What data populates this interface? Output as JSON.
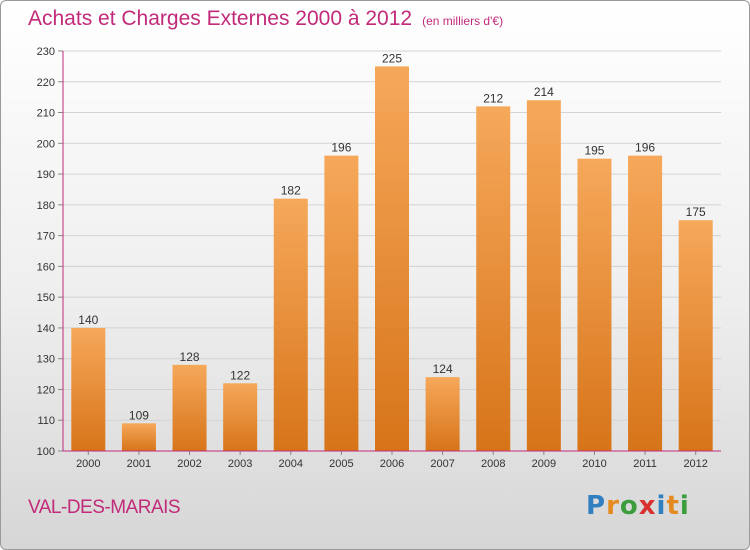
{
  "header": {
    "title": "Achats et Charges Externes 2000 à 2012",
    "unit": "(en milliers d'€)"
  },
  "footer": {
    "commune": "VAL-DES-MARAIS",
    "logo_letters": [
      "P",
      "r",
      "o",
      "x",
      "i",
      "t",
      "i"
    ],
    "logo_colors": [
      "#2f7fc1",
      "#e58a1f",
      "#3b9d3b",
      "#d93030",
      "#2f7fc1",
      "#e58a1f",
      "#3b9d3b"
    ]
  },
  "colors": {
    "title": "#c22a7a",
    "bar_light": "#f6a85a",
    "bar_dark": "#d77419",
    "axis": "#c22a7a"
  },
  "chart_data": {
    "type": "bar",
    "title": "Achats et Charges Externes 2000 à 2012",
    "categories": [
      "2000",
      "2001",
      "2002",
      "2003",
      "2004",
      "2005",
      "2006",
      "2007",
      "2008",
      "2009",
      "2010",
      "2011",
      "2012"
    ],
    "values": [
      140,
      109,
      128,
      122,
      182,
      196,
      225,
      124,
      212,
      214,
      195,
      196,
      175
    ],
    "ylim": [
      100,
      230
    ],
    "yticks": [
      100,
      110,
      120,
      130,
      140,
      150,
      160,
      170,
      180,
      190,
      200,
      210,
      220,
      230
    ],
    "grid": true
  }
}
